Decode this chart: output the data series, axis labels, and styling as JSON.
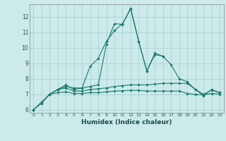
{
  "x": [
    0,
    1,
    2,
    3,
    4,
    5,
    6,
    7,
    8,
    9,
    10,
    11,
    12,
    13,
    14,
    15,
    16,
    17,
    18,
    19,
    20,
    21,
    22,
    23
  ],
  "series1": [
    6.0,
    6.5,
    7.0,
    7.3,
    7.5,
    7.4,
    7.4,
    8.8,
    9.3,
    10.4,
    11.1,
    11.55,
    12.5,
    10.4,
    8.5,
    9.55,
    9.45,
    null,
    null,
    null,
    null,
    null,
    null,
    null
  ],
  "series2": [
    6.0,
    6.4,
    7.0,
    7.3,
    7.6,
    7.3,
    7.4,
    7.5,
    7.6,
    10.2,
    11.55,
    11.5,
    12.55,
    10.4,
    8.5,
    9.65,
    9.45,
    8.9,
    8.0,
    7.8,
    7.3,
    6.9,
    7.3,
    7.1
  ],
  "series3": [
    6.0,
    null,
    7.0,
    7.3,
    7.4,
    7.2,
    7.2,
    7.3,
    7.35,
    7.4,
    7.5,
    7.55,
    7.6,
    7.6,
    7.6,
    7.65,
    7.7,
    7.7,
    7.7,
    7.7,
    7.3,
    7.0,
    7.25,
    7.1
  ],
  "series4": [
    6.0,
    null,
    7.0,
    7.1,
    7.15,
    7.05,
    7.05,
    7.1,
    7.1,
    7.15,
    7.2,
    7.22,
    7.25,
    7.25,
    7.2,
    7.2,
    7.2,
    7.2,
    7.2,
    7.05,
    6.98,
    6.95,
    7.05,
    7.0
  ],
  "color": "#1a7a6e",
  "bg_color": "#cceaea",
  "grid_color": "#aad0d0",
  "xlabel": "Humidex (Indice chaleur)",
  "ylim": [
    5.8,
    12.8
  ],
  "xlim": [
    -0.5,
    23.5
  ],
  "yticks": [
    6,
    7,
    8,
    9,
    10,
    11,
    12
  ],
  "xticks": [
    0,
    1,
    2,
    3,
    4,
    5,
    6,
    7,
    8,
    9,
    10,
    11,
    12,
    13,
    14,
    15,
    16,
    17,
    18,
    19,
    20,
    21,
    22,
    23
  ],
  "marker": "D",
  "markersize": 1.8,
  "linewidth": 0.8
}
